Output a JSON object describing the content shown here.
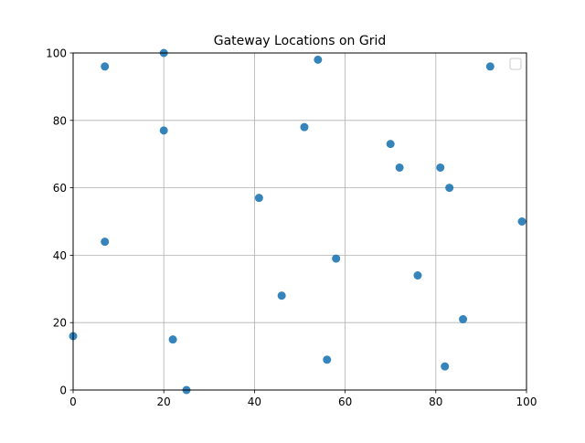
{
  "chart_data": {
    "type": "scatter",
    "title": "Gateway Locations on Grid",
    "xlabel": "",
    "ylabel": "",
    "xlim": [
      0,
      100
    ],
    "ylim": [
      0,
      100
    ],
    "xticks": [
      "0",
      "20",
      "40",
      "60",
      "80",
      "100"
    ],
    "yticks": [
      "0",
      "20",
      "40",
      "60",
      "80",
      "100"
    ],
    "grid": true,
    "legend": "top-right",
    "series": [
      {
        "color": "#1f77b4",
        "points": [
          {
            "x": 7,
            "y": 96
          },
          {
            "x": 20,
            "y": 100
          },
          {
            "x": 54,
            "y": 98
          },
          {
            "x": 92,
            "y": 96
          },
          {
            "x": 20,
            "y": 77
          },
          {
            "x": 51,
            "y": 78
          },
          {
            "x": 70,
            "y": 73
          },
          {
            "x": 72,
            "y": 66
          },
          {
            "x": 81,
            "y": 66
          },
          {
            "x": 83,
            "y": 60
          },
          {
            "x": 41,
            "y": 57
          },
          {
            "x": 99,
            "y": 50
          },
          {
            "x": 7,
            "y": 44
          },
          {
            "x": 58,
            "y": 39
          },
          {
            "x": 76,
            "y": 34
          },
          {
            "x": 46,
            "y": 28
          },
          {
            "x": 86,
            "y": 21
          },
          {
            "x": 0,
            "y": 16
          },
          {
            "x": 22,
            "y": 15
          },
          {
            "x": 56,
            "y": 9
          },
          {
            "x": 82,
            "y": 7
          },
          {
            "x": 25,
            "y": 0
          }
        ]
      }
    ]
  }
}
